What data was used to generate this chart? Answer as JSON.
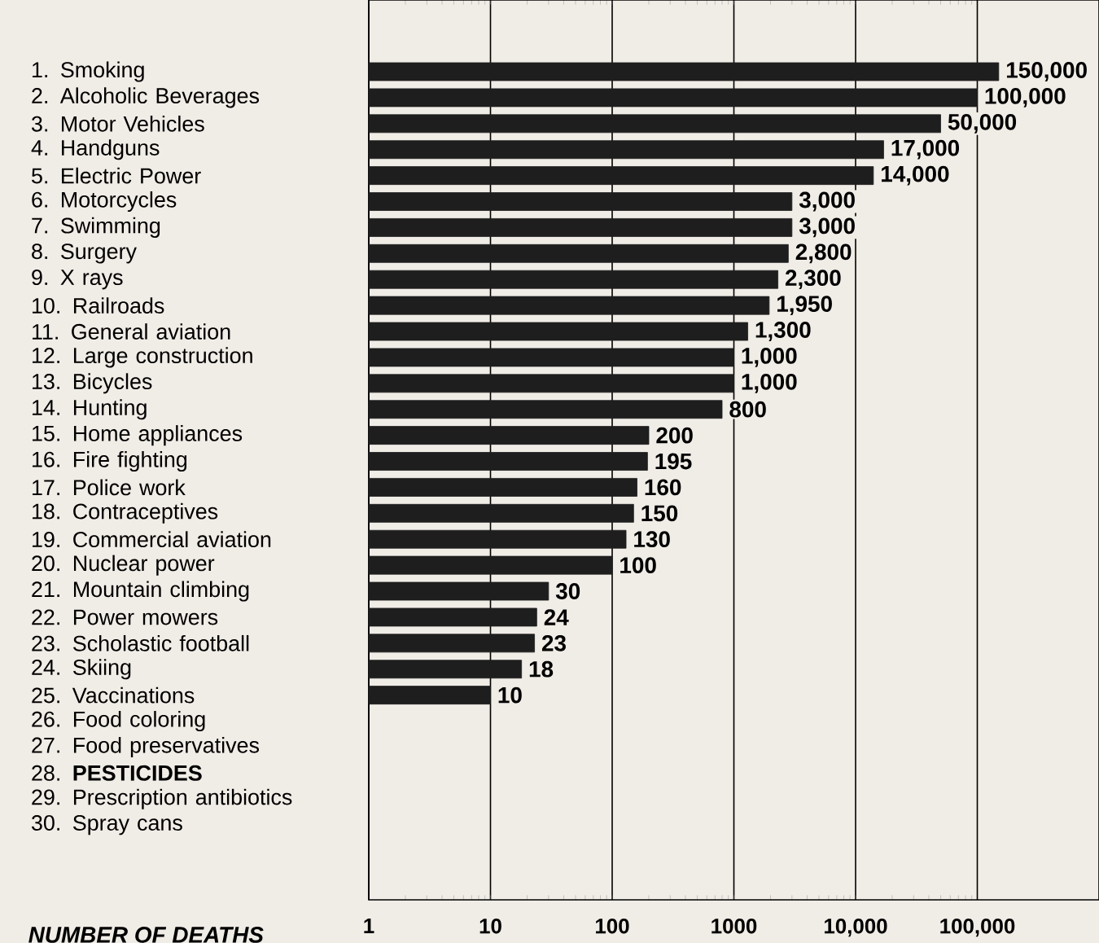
{
  "chart_data": {
    "type": "bar",
    "orientation": "horizontal",
    "log": "x",
    "grid": "x",
    "xlabel": "NUMBER OF DEATHS",
    "categories": [
      "1. Smoking",
      "2. Alcoholic Beverages",
      "3. Motor Vehicles",
      "4. Handguns",
      "5. Electric Power",
      "6. Motorcycles",
      "7. Swimming",
      "8. Surgery",
      "9. X rays",
      "10. Railroads",
      "11. General aviation",
      "12. Large construction",
      "13. Bicycles",
      "14. Hunting",
      "15. Home appliances",
      "16. Fire fighting",
      "17. Police work",
      "18. Contraceptives",
      "19. Commercial aviation",
      "20. Nuclear power",
      "21. Mountain climbing",
      "22. Power mowers",
      "23. Scholastic football",
      "24. Skiing",
      "25. Vaccinations",
      "26. Food coloring",
      "27. Food preservatives",
      "28. **PESTICIDES**",
      "29. Prescription antibiotics",
      "30. Spray cans"
    ],
    "values": [
      150000,
      100000,
      50000,
      17000,
      14000,
      3000,
      3000,
      2800,
      2300,
      1950,
      1300,
      1000,
      1000,
      800,
      200,
      195,
      160,
      150,
      130,
      100,
      30,
      24,
      23,
      18,
      10,
      null,
      null,
      null,
      null,
      null
    ],
    "value_labels": [
      "150,000",
      "100,000",
      "50,000",
      "17,000",
      "14,000",
      "3,000",
      "3,000",
      "2,800",
      "2,300",
      "1,950",
      "1,300",
      "1,000",
      "1,000",
      "800",
      "200",
      "195",
      "160",
      "150",
      "130",
      "100",
      "30",
      "24",
      "23",
      "18",
      "10",
      null,
      null,
      null,
      null,
      null
    ],
    "color": "#1e1e1e",
    "xlim": [
      1,
      1000000
    ],
    "xticks": [
      1,
      10,
      100,
      1000,
      {
        "value": 10000,
        "label": "10,000"
      },
      {
        "value": 100000,
        "label": "100,000"
      }
    ]
  }
}
